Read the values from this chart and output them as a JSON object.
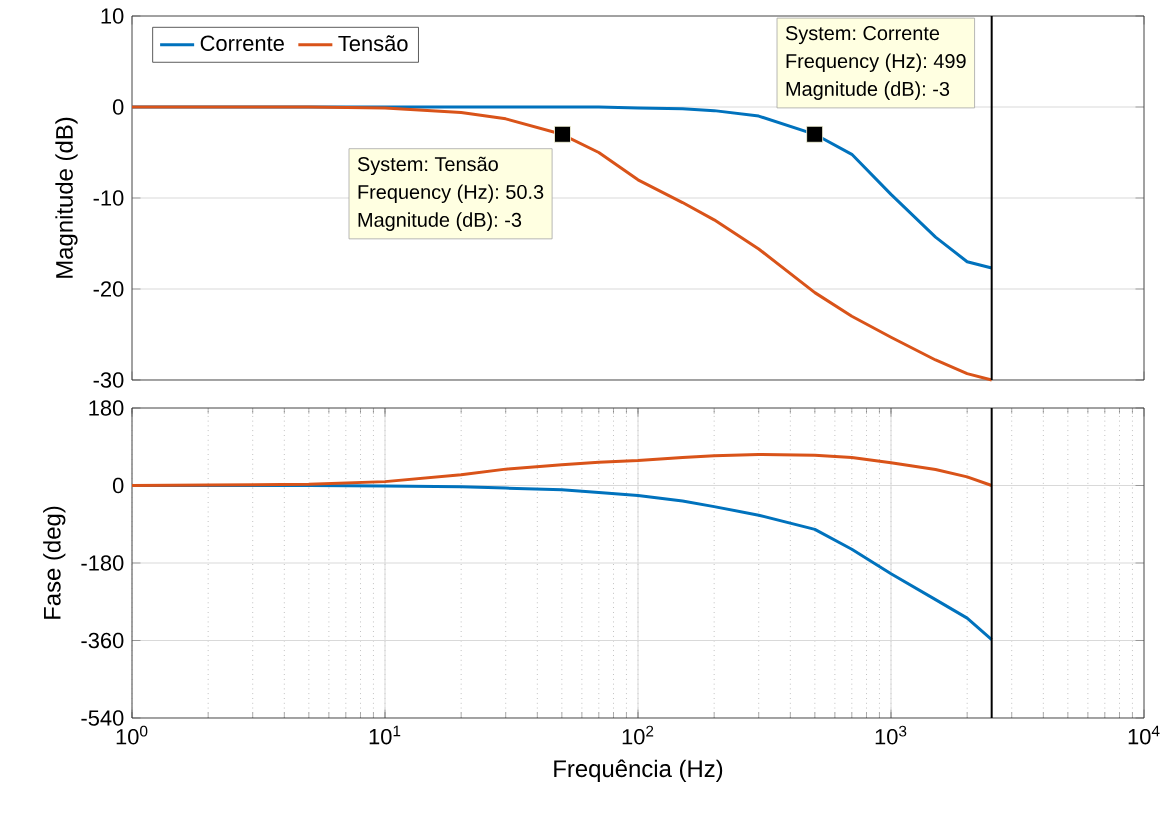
{
  "chart_data": [
    {
      "type": "line",
      "ylabel": "Magnitude (dB)",
      "log": "x",
      "grid": true,
      "legend": "top left",
      "tick_labels": "y",
      "x": [
        1,
        2,
        5,
        10,
        20,
        30,
        50,
        70,
        100,
        150,
        200,
        300,
        500,
        700,
        1000,
        1500,
        2000,
        2500
      ],
      "xlim": [
        1,
        10000
      ],
      "ylim": [
        -30,
        10
      ],
      "yticks": [
        -30,
        -20,
        -10,
        0,
        10
      ],
      "series": [
        {
          "name": "Corrente",
          "color": "#0072bd",
          "values": [
            0,
            0,
            0,
            0,
            0,
            0,
            0,
            0,
            -0.1,
            -0.2,
            -0.4,
            -1,
            -3,
            -5.2,
            -9.6,
            -14.3,
            -17,
            -17.7
          ]
        },
        {
          "name": "Tensão",
          "color": "#d95319",
          "values": [
            0,
            0,
            0,
            -0.1,
            -0.6,
            -1.3,
            -3,
            -5,
            -8,
            -10.5,
            -12.4,
            -15.6,
            -20.4,
            -23,
            -25.3,
            -27.8,
            -29.3,
            -30
          ]
        },
        {
          "type": "scatter",
          "marker": "square",
          "color": "#000000",
          "x": [
            50.3,
            499
          ],
          "values": [
            -3,
            -3
          ]
        }
      ],
      "ref_lines": [
        {
          "axis": "x",
          "value": 2500,
          "color": "#000000"
        }
      ],
      "annotations": [
        "System: Tensão",
        "Frequency (Hz): 50.3",
        "Magnitude (dB): -3",
        "System: Corrente",
        "Frequency (Hz): 499",
        "Magnitude (dB): -3"
      ]
    },
    {
      "type": "line",
      "xlabel": "Frequência  (Hz)",
      "ylabel": "Fase (deg)",
      "log": "x",
      "grid": true,
      "x": [
        1,
        2,
        5,
        10,
        20,
        30,
        50,
        70,
        100,
        150,
        200,
        300,
        500,
        700,
        1000,
        1500,
        2000,
        2500
      ],
      "xlim": [
        1,
        10000
      ],
      "ylim": [
        -540,
        180
      ],
      "xticks": [
        {
          "value": 1,
          "label": "10$^{0}$"
        },
        {
          "value": 10,
          "label": "10$^{1}$"
        },
        {
          "value": 100,
          "label": "10$^{2}$"
        },
        {
          "value": 1000,
          "label": "10$^{3}$"
        },
        {
          "value": 10000,
          "label": "10$^{4}$"
        }
      ],
      "yticks": [
        -540,
        -360,
        -180,
        0,
        180
      ],
      "series": [
        {
          "color": "#0072bd",
          "values": [
            0,
            0,
            0,
            -1,
            -3,
            -6,
            -10,
            -16,
            -23,
            -36,
            -49,
            -69,
            -102,
            -148,
            -205,
            -265,
            -308,
            -358
          ]
        },
        {
          "color": "#d95319",
          "values": [
            0,
            1,
            3,
            9,
            25,
            38,
            48,
            54,
            58,
            65,
            69,
            72,
            70,
            65,
            53,
            37,
            20,
            0
          ]
        }
      ],
      "ref_lines": [
        {
          "axis": "x",
          "value": 2500,
          "color": "#000000"
        }
      ]
    }
  ]
}
